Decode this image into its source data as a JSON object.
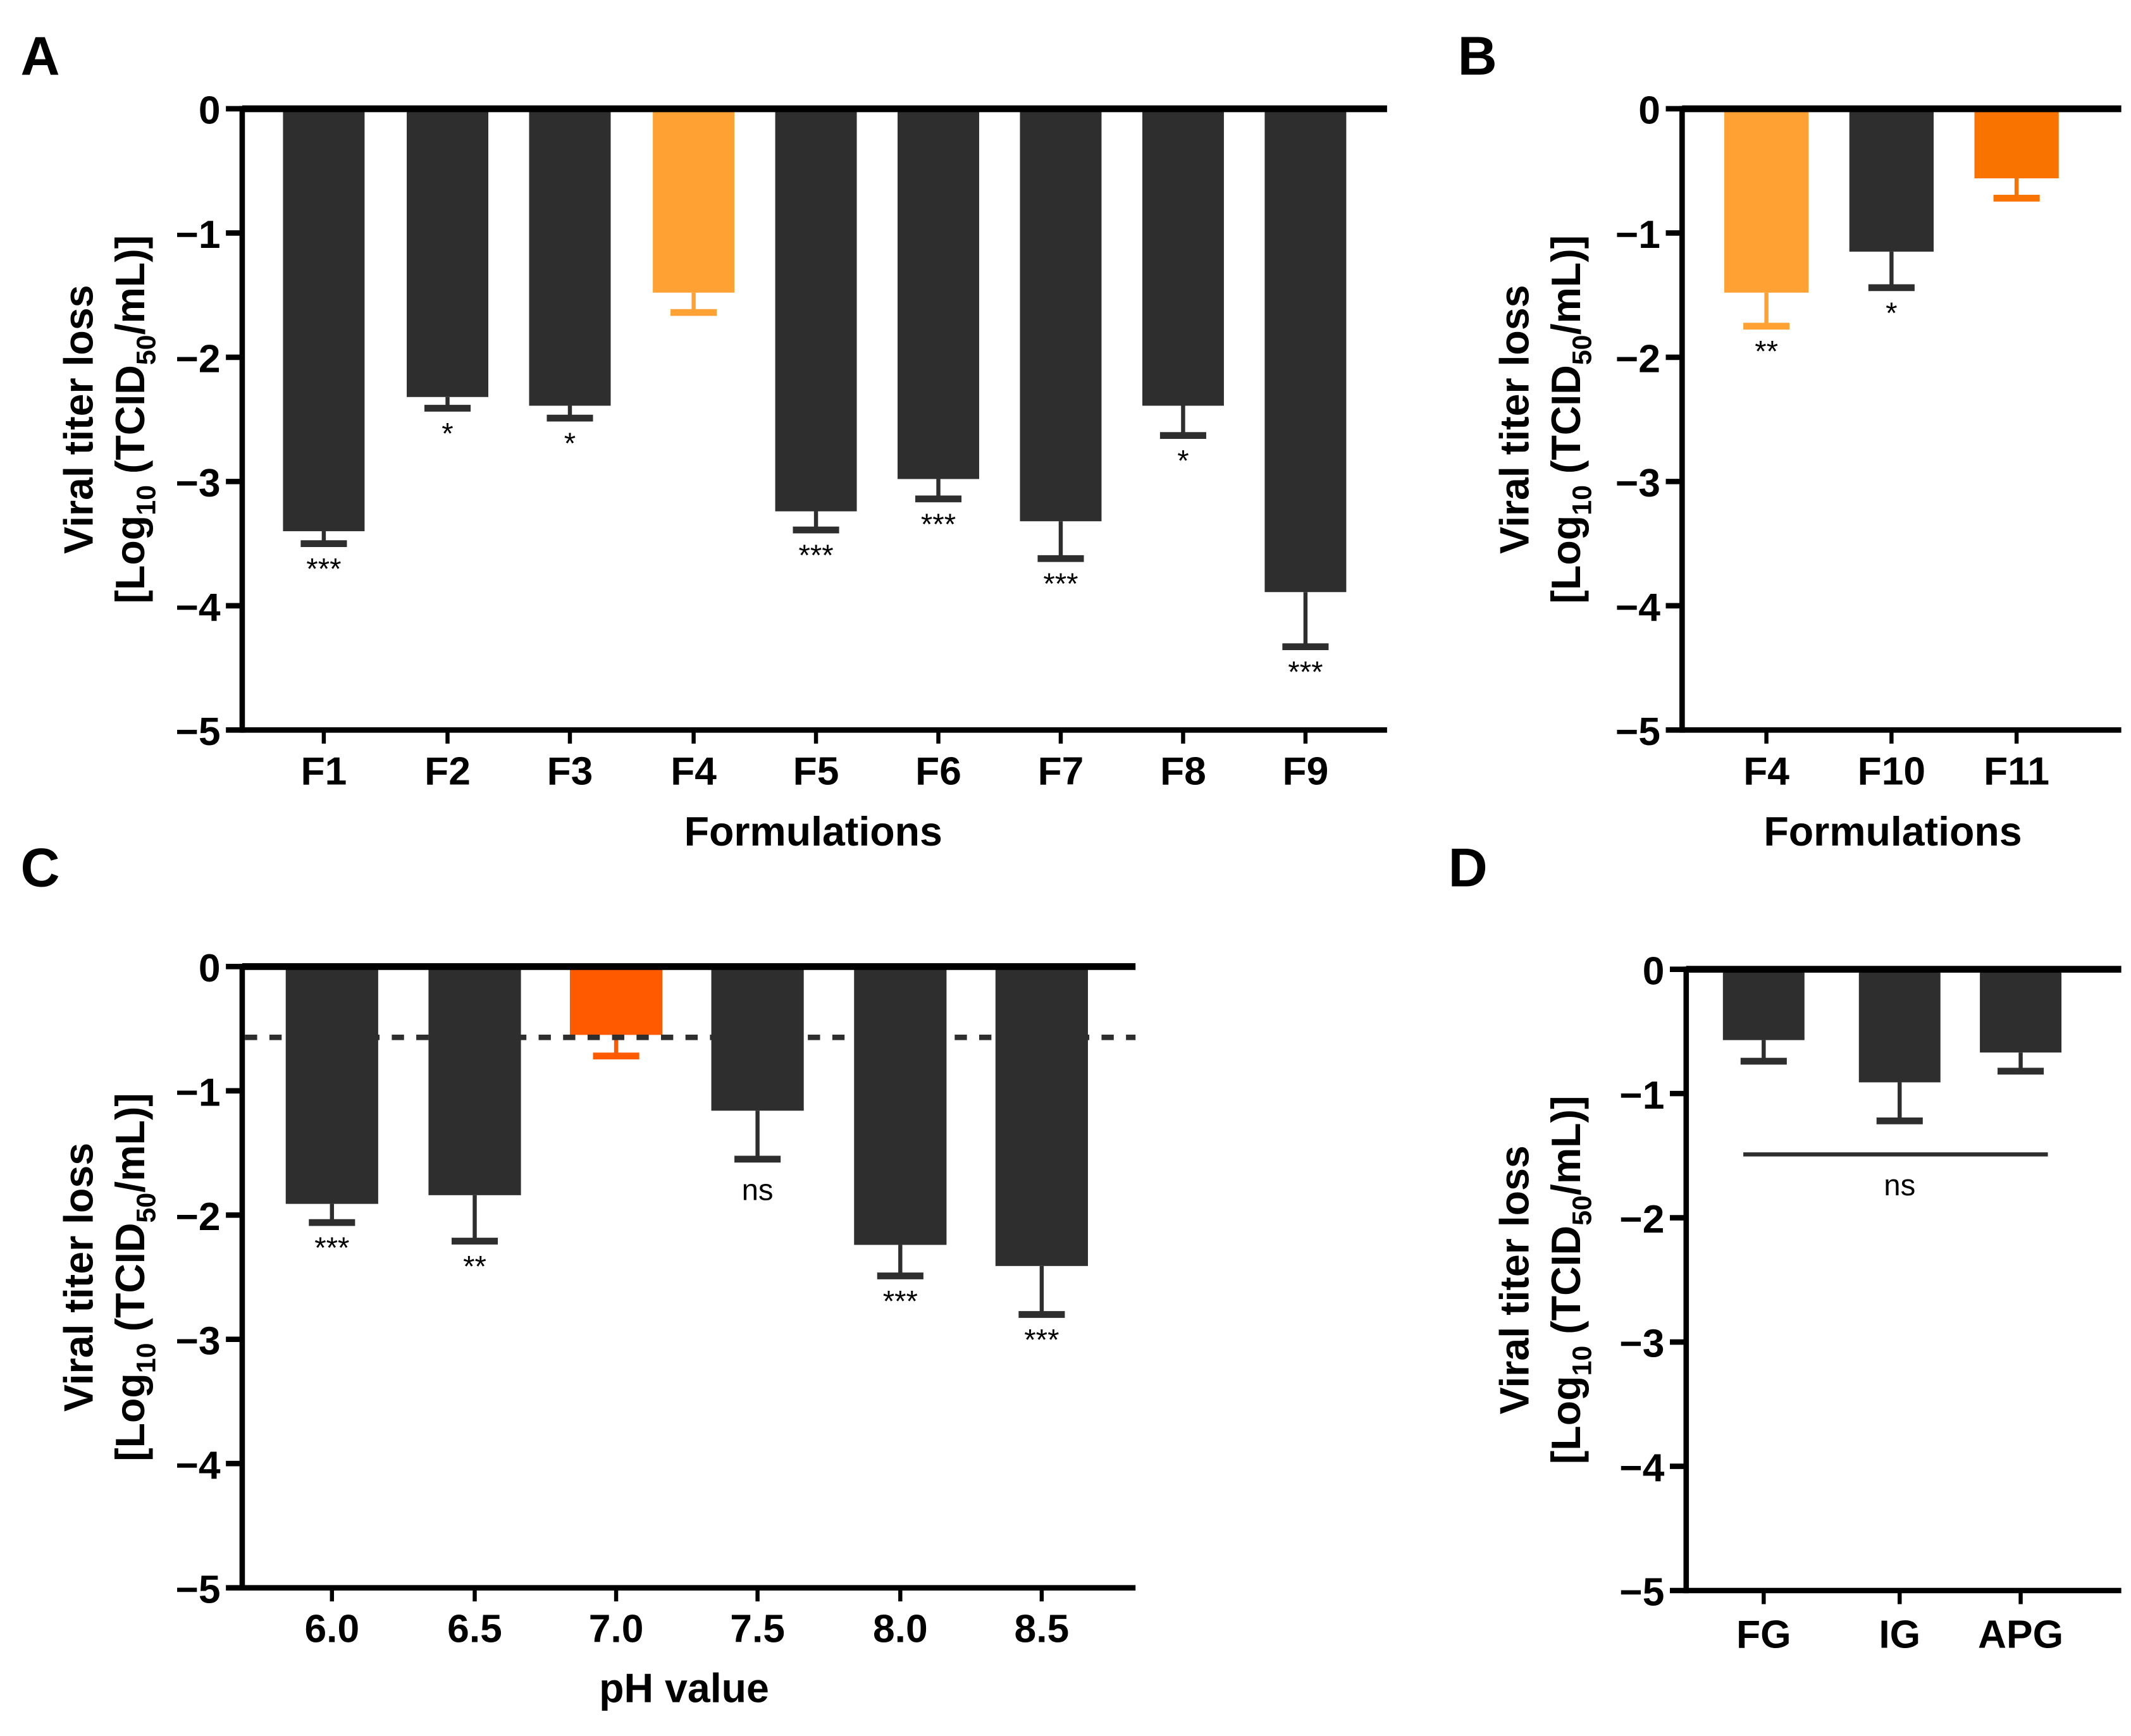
{
  "colors": {
    "dark": "#2e2e2e",
    "light_orange": "#FFA233",
    "orange": "#F97300",
    "red_orange": "#FF5A00"
  },
  "chart_data": [
    {
      "panel": "A",
      "type": "bar",
      "xlabel": "Formulations",
      "ylabel_line1": "Viral titer loss",
      "ylabel_line2": [
        "[Log",
        "10",
        " (TCID",
        "50",
        "/mL)]"
      ],
      "ylim": [
        -5,
        0
      ],
      "yticks": [
        "0",
        "−1",
        "−2",
        "−3",
        "−4",
        "−5"
      ],
      "categories": [
        "F1",
        "F2",
        "F3",
        "F4",
        "F5",
        "F6",
        "F7",
        "F8",
        "F9"
      ],
      "values": [
        -3.4,
        -2.32,
        -2.39,
        -1.48,
        -3.24,
        -2.98,
        -3.32,
        -2.39,
        -3.89
      ],
      "errors": [
        0.1,
        0.09,
        0.1,
        0.16,
        0.15,
        0.16,
        0.3,
        0.24,
        0.44
      ],
      "bar_colors": [
        "dark",
        "dark",
        "dark",
        "light_orange",
        "dark",
        "dark",
        "dark",
        "dark",
        "dark"
      ],
      "annotations": [
        "***",
        "*",
        "*",
        "",
        "***",
        "***",
        "***",
        "*",
        "***"
      ]
    },
    {
      "panel": "B",
      "type": "bar",
      "xlabel": "Formulations",
      "ylabel_line1": "Viral titer loss",
      "ylabel_line2": [
        "[Log",
        "10",
        " (TCID",
        "50",
        "/mL)]"
      ],
      "ylim": [
        -5,
        0
      ],
      "yticks": [
        "0",
        "−1",
        "−2",
        "−3",
        "−4",
        "−5"
      ],
      "categories": [
        "F4",
        "F10",
        "F11"
      ],
      "values": [
        -1.48,
        -1.15,
        -0.56
      ],
      "errors": [
        0.27,
        0.29,
        0.16
      ],
      "bar_colors": [
        "light_orange",
        "dark",
        "orange"
      ],
      "annotations": [
        "**",
        "*",
        ""
      ]
    },
    {
      "panel": "C",
      "type": "bar",
      "xlabel": "pH value",
      "ylabel_line1": "Viral titer loss",
      "ylabel_line2": [
        "[Log",
        "10",
        " (TCID",
        "50",
        "/mL)]"
      ],
      "ylim": [
        -5,
        0
      ],
      "yticks": [
        "0",
        "−1",
        "−2",
        "−3",
        "−4",
        "−5"
      ],
      "categories": [
        "6.0",
        "6.5",
        "7.0",
        "7.5",
        "8.0",
        "8.5"
      ],
      "values": [
        -1.91,
        -1.84,
        -0.55,
        -1.16,
        -2.24,
        -2.41
      ],
      "errors": [
        0.15,
        0.37,
        0.17,
        0.39,
        0.25,
        0.39
      ],
      "bar_colors": [
        "dark",
        "dark",
        "red_orange",
        "dark",
        "dark",
        "dark"
      ],
      "annotations": [
        "***",
        "**",
        "",
        "ns",
        "***",
        "***"
      ],
      "reference_line": -0.57
    },
    {
      "panel": "D",
      "type": "bar",
      "xlabel": "",
      "ylabel_line1": "Viral titer loss",
      "ylabel_line2": [
        "[Log",
        "10",
        " (TCID",
        "50",
        "/mL)]"
      ],
      "ylim": [
        -5,
        0
      ],
      "yticks": [
        "0",
        "−1",
        "−2",
        "−3",
        "−4",
        "−5"
      ],
      "categories": [
        "FG",
        "IG",
        "APG"
      ],
      "values": [
        -0.57,
        -0.91,
        -0.67
      ],
      "errors": [
        0.17,
        0.31,
        0.15
      ],
      "bar_colors": [
        "dark",
        "dark",
        "dark"
      ],
      "annotations": [
        "",
        "",
        ""
      ],
      "group_comparison": {
        "value": -1.49,
        "label": "ns"
      }
    }
  ]
}
